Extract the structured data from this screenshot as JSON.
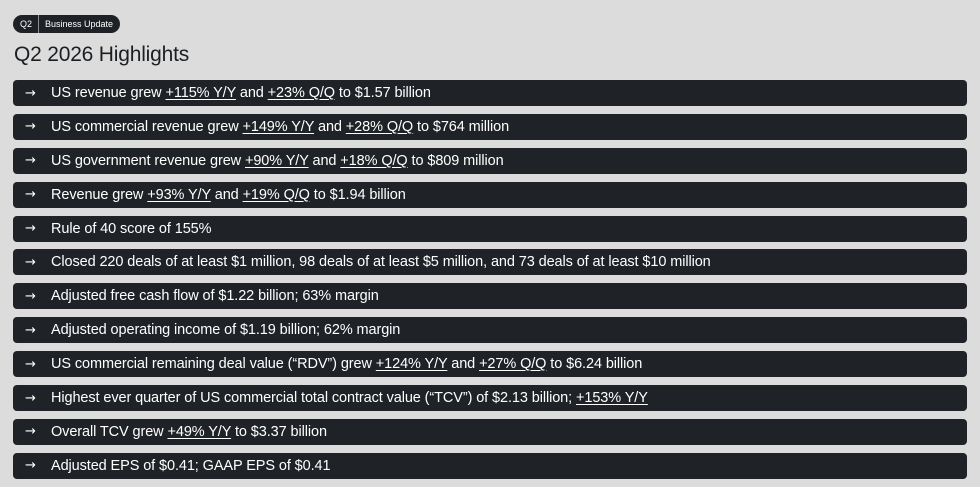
{
  "badge": {
    "quarter": "Q2",
    "label": "Business Update"
  },
  "title": "Q2 2026 Highlights",
  "icons": {
    "bullet": "arrow-right-icon",
    "glyph": "→"
  },
  "colors": {
    "background": "#dcdcdc",
    "row_background": "#1f2327",
    "row_text": "#ffffff"
  },
  "highlights": [
    {
      "parts": [
        {
          "text": "US revenue grew "
        },
        {
          "text": "+115% Y/Y",
          "u": true
        },
        {
          "text": " and "
        },
        {
          "text": "+23% Q/Q",
          "u": true
        },
        {
          "text": " to $1.57 billion"
        }
      ]
    },
    {
      "parts": [
        {
          "text": "US commercial revenue grew "
        },
        {
          "text": "+149% Y/Y",
          "u": true
        },
        {
          "text": "  and "
        },
        {
          "text": "+28% Q/Q",
          "u": true
        },
        {
          "text": " to $764 million"
        }
      ]
    },
    {
      "parts": [
        {
          "text": "US government revenue grew "
        },
        {
          "text": "+90% Y/Y",
          "u": true
        },
        {
          "text": " and "
        },
        {
          "text": "+18% Q/Q",
          "u": true
        },
        {
          "text": " to $809 million"
        }
      ]
    },
    {
      "parts": [
        {
          "text": "Revenue grew "
        },
        {
          "text": "+93% Y/Y",
          "u": true
        },
        {
          "text": " and "
        },
        {
          "text": "+19% Q/Q",
          "u": true
        },
        {
          "text": " to $1.94 billion"
        }
      ]
    },
    {
      "parts": [
        {
          "text": "Rule of 40 score of 155%"
        }
      ]
    },
    {
      "parts": [
        {
          "text": "Closed 220 deals of at least $1 million, 98 deals of at least $5 million, and 73 deals of at least $10 million"
        }
      ]
    },
    {
      "parts": [
        {
          "text": "Adjusted free cash flow of $1.22 billion; 63% margin"
        }
      ]
    },
    {
      "parts": [
        {
          "text": "Adjusted operating income of $1.19 billion; 62% margin"
        }
      ]
    },
    {
      "parts": [
        {
          "text": "US commercial remaining deal value (“RDV”) grew "
        },
        {
          "text": "+124% Y/Y",
          "u": true
        },
        {
          "text": " and "
        },
        {
          "text": "+27% Q/Q",
          "u": true
        },
        {
          "text": " to $6.24 billion"
        }
      ]
    },
    {
      "parts": [
        {
          "text": "Highest ever quarter of US commercial total contract value (“TCV”) of $2.13 billion; "
        },
        {
          "text": "+153% Y/Y",
          "u": true
        }
      ]
    },
    {
      "parts": [
        {
          "text": "Overall TCV grew "
        },
        {
          "text": "+49% Y/Y",
          "u": true
        },
        {
          "text": " to $3.37 billion"
        }
      ]
    },
    {
      "parts": [
        {
          "text": "Adjusted EPS of $0.41; GAAP EPS of $0.41"
        }
      ]
    }
  ]
}
